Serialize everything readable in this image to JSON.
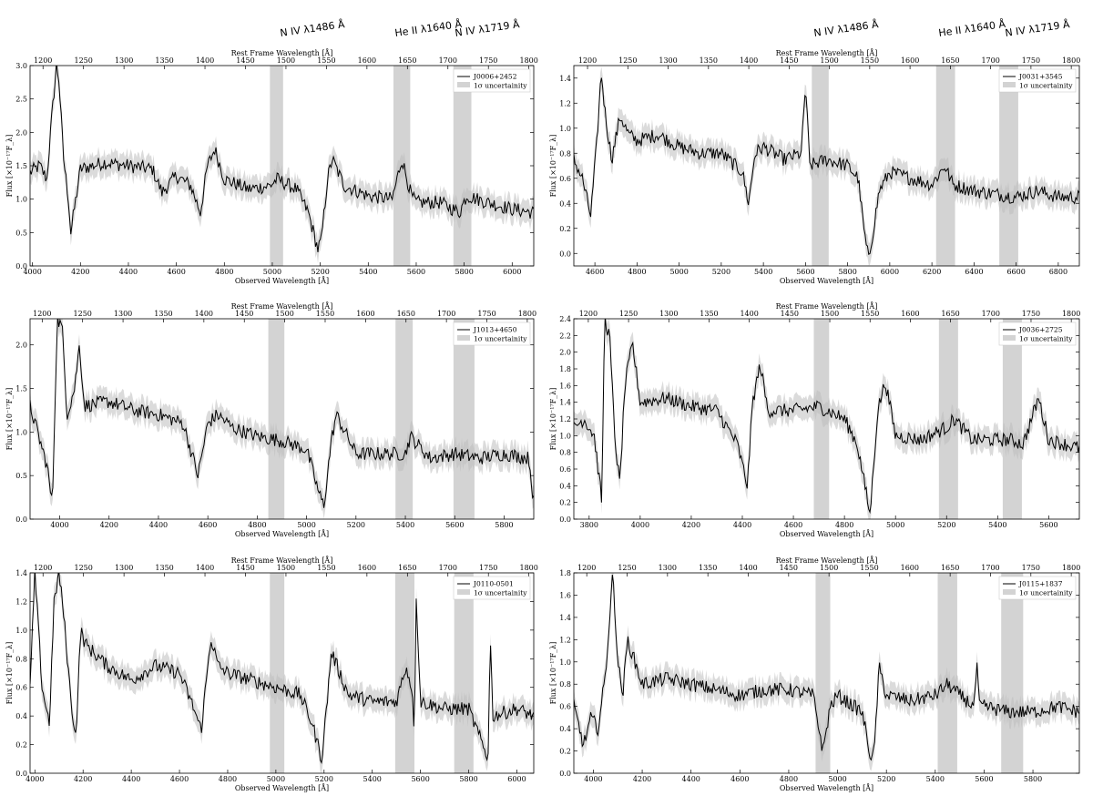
{
  "figure": {
    "line_labels": [
      "N IV λ1486 Å",
      "He II λ1640 Å",
      "N IV λ1719 Å"
    ],
    "colors": {
      "spectrum": "#000000",
      "uncertainty": "#bdbdbd",
      "band": "#d3d3d3"
    }
  },
  "chart_data": [
    {
      "type": "line",
      "name": "J0006+2452",
      "legend": [
        "J0006+2452",
        "1σ uncertainity"
      ],
      "xlabel": "Observed Wavelength [Å]",
      "ylabel": "Flux [×10⁻¹⁷F_λ]",
      "top_xlabel": "Rest Frame Wavelength [Å]",
      "xlim": [
        3990,
        6090
      ],
      "ylim": [
        0.0,
        3.0
      ],
      "xticks": [
        4000,
        4200,
        4400,
        4600,
        4800,
        5000,
        5200,
        5400,
        5600,
        5800,
        6000
      ],
      "yticks": [
        "0.0",
        "0.5",
        "1.0",
        "1.5",
        "2.0",
        "2.5",
        "3.0"
      ],
      "top_ticks": [
        1200,
        1250,
        1300,
        1350,
        1400,
        1450,
        1500,
        1550,
        1600,
        1650,
        1700,
        1750,
        1800
      ],
      "rest_range": [
        1184,
        1806
      ],
      "bands": [
        [
          4990,
          5045
        ],
        [
          5505,
          5575
        ],
        [
          5755,
          5830
        ]
      ],
      "x": [
        3990,
        4030,
        4060,
        4080,
        4100,
        4110,
        4130,
        4150,
        4160,
        4200,
        4300,
        4400,
        4500,
        4540,
        4600,
        4660,
        4700,
        4730,
        4760,
        4800,
        4900,
        4990,
        5020,
        5100,
        5150,
        5190,
        5205,
        5230,
        5250,
        5300,
        5400,
        5500,
        5540,
        5580,
        5600,
        5700,
        5780,
        5810,
        5900,
        6000,
        6090
      ],
      "y": [
        1.4,
        1.5,
        1.3,
        2.2,
        3.0,
        2.8,
        1.6,
        1.0,
        0.5,
        1.45,
        1.55,
        1.5,
        1.45,
        1.1,
        1.35,
        1.2,
        0.8,
        1.5,
        1.75,
        1.3,
        1.15,
        1.2,
        1.3,
        1.15,
        0.8,
        0.25,
        0.4,
        1.3,
        1.6,
        1.2,
        1.05,
        1.0,
        1.6,
        1.05,
        0.95,
        0.95,
        0.8,
        1.05,
        0.95,
        0.85,
        0.8
      ]
    },
    {
      "type": "line",
      "name": "J0031+3545",
      "legend": [
        "J0031+3545",
        "1σ uncertainity"
      ],
      "xlabel": "Observed Wavelength [Å]",
      "ylabel": "Flux [×10⁻¹⁷F_λ]",
      "top_xlabel": "Rest Frame Wavelength [Å]",
      "xlim": [
        4500,
        6900
      ],
      "ylim": [
        -0.1,
        1.5
      ],
      "xticks": [
        4600,
        4800,
        5000,
        5200,
        5400,
        5600,
        5800,
        6000,
        6200,
        6400,
        6600,
        6800
      ],
      "yticks": [
        "0.0",
        "0.2",
        "0.4",
        "0.6",
        "0.8",
        "1.0",
        "1.2",
        "1.4"
      ],
      "top_ticks": [
        1200,
        1250,
        1300,
        1350,
        1400,
        1450,
        1500,
        1550,
        1600,
        1650,
        1700,
        1750,
        1800
      ],
      "rest_range": [
        1183,
        1810
      ],
      "bands": [
        [
          5630,
          5710
        ],
        [
          6220,
          6310
        ],
        [
          6520,
          6610
        ]
      ],
      "x": [
        4500,
        4540,
        4580,
        4610,
        4630,
        4650,
        4680,
        4720,
        4760,
        4800,
        4900,
        5000,
        5100,
        5200,
        5300,
        5330,
        5360,
        5400,
        5500,
        5580,
        5600,
        5620,
        5700,
        5800,
        5850,
        5880,
        5900,
        5950,
        6000,
        6200,
        6260,
        6300,
        6400,
        6600,
        6700,
        6800,
        6900
      ],
      "y": [
        0.75,
        0.6,
        0.3,
        0.9,
        1.45,
        1.1,
        0.75,
        1.1,
        0.95,
        0.9,
        0.95,
        0.85,
        0.8,
        0.8,
        0.65,
        0.4,
        0.8,
        0.85,
        0.75,
        0.8,
        1.35,
        0.7,
        0.75,
        0.7,
        0.6,
        0.15,
        -0.05,
        0.5,
        0.65,
        0.55,
        0.7,
        0.55,
        0.5,
        0.45,
        0.5,
        0.45,
        0.45
      ]
    },
    {
      "type": "line",
      "name": "J1013+4650",
      "legend": [
        "J1013+4650",
        "1σ uncertainity"
      ],
      "xlabel": "Observed Wavelength [Å]",
      "ylabel": "Flux [×10⁻¹⁷F_λ]",
      "top_xlabel": "Rest Frame Wavelength [Å]",
      "xlim": [
        3880,
        5920
      ],
      "ylim": [
        0.0,
        2.3
      ],
      "xticks": [
        4000,
        4200,
        4400,
        4600,
        4800,
        5000,
        5200,
        5400,
        5600,
        5800
      ],
      "yticks": [
        "0.0",
        "0.5",
        "1.0",
        "1.5",
        "2.0"
      ],
      "top_ticks": [
        1200,
        1250,
        1300,
        1350,
        1400,
        1450,
        1500,
        1550,
        1600,
        1650,
        1700,
        1750,
        1800
      ],
      "rest_range": [
        1185,
        1808
      ],
      "bands": [
        [
          4845,
          4910
        ],
        [
          5360,
          5430
        ],
        [
          5595,
          5680
        ]
      ],
      "x": [
        3880,
        3920,
        3950,
        3970,
        3990,
        4010,
        4030,
        4060,
        4080,
        4100,
        4200,
        4300,
        4400,
        4500,
        4560,
        4600,
        4640,
        4700,
        4800,
        4900,
        5000,
        5050,
        5070,
        5100,
        5120,
        5200,
        5300,
        5400,
        5420,
        5500,
        5600,
        5700,
        5800,
        5900,
        5920
      ],
      "y": [
        1.3,
        0.9,
        0.6,
        0.15,
        2.3,
        2.2,
        1.2,
        1.5,
        2.0,
        1.3,
        1.35,
        1.25,
        1.2,
        1.1,
        0.5,
        1.1,
        1.2,
        1.05,
        0.95,
        0.9,
        0.8,
        0.3,
        0.15,
        0.9,
        1.2,
        0.75,
        0.75,
        0.75,
        0.95,
        0.7,
        0.75,
        0.7,
        0.75,
        0.7,
        0.2
      ]
    },
    {
      "type": "line",
      "name": "J0036+2725",
      "legend": [
        "J0036+2725",
        "1σ uncertainity"
      ],
      "xlabel": "Observed Wavelength [Å]",
      "ylabel": "Flux [×10⁻¹⁷F_λ]",
      "top_xlabel": "Rest Frame Wavelength [Å]",
      "xlim": [
        3740,
        5720
      ],
      "ylim": [
        0.0,
        2.4
      ],
      "xticks": [
        3800,
        4000,
        4200,
        4400,
        4600,
        4800,
        5000,
        5200,
        5400,
        5600
      ],
      "yticks": [
        "0.0",
        "0.2",
        "0.4",
        "0.6",
        "0.8",
        "1.0",
        "1.2",
        "1.4",
        "1.6",
        "1.8",
        "2.0",
        "2.2",
        "2.4"
      ],
      "top_ticks": [
        1200,
        1250,
        1300,
        1350,
        1400,
        1450,
        1500,
        1550,
        1600,
        1650,
        1700,
        1750,
        1800
      ],
      "rest_range": [
        1182,
        1810
      ],
      "bands": [
        [
          4680,
          4740
        ],
        [
          5170,
          5245
        ],
        [
          5420,
          5495
        ]
      ],
      "x": [
        3740,
        3780,
        3820,
        3850,
        3860,
        3880,
        3900,
        3920,
        3940,
        3970,
        4000,
        4100,
        4200,
        4300,
        4380,
        4420,
        4440,
        4470,
        4500,
        4600,
        4700,
        4800,
        4850,
        4880,
        4900,
        4930,
        4960,
        5000,
        5100,
        5200,
        5230,
        5300,
        5400,
        5450,
        5500,
        5560,
        5600,
        5720
      ],
      "y": [
        1.1,
        1.2,
        1.0,
        0.2,
        2.4,
        2.2,
        1.0,
        0.4,
        1.6,
        2.1,
        1.4,
        1.45,
        1.35,
        1.3,
        0.9,
        0.4,
        1.4,
        1.85,
        1.3,
        1.3,
        1.35,
        1.2,
        0.9,
        0.4,
        0.05,
        1.3,
        1.65,
        1.0,
        0.95,
        1.1,
        1.2,
        0.95,
        0.95,
        0.95,
        0.9,
        1.45,
        0.95,
        0.85
      ]
    },
    {
      "type": "line",
      "name": "J0110-0501",
      "legend": [
        "J0110-0501",
        "1σ uncertainity"
      ],
      "xlabel": "Observed Wavelength [Å]",
      "ylabel": "Flux [×10⁻¹⁷F_λ]",
      "top_xlabel": "Rest Frame Wavelength [Å]",
      "xlim": [
        3980,
        6070
      ],
      "ylim": [
        0.0,
        1.4
      ],
      "xticks": [
        4000,
        4200,
        4400,
        4600,
        4800,
        5000,
        5200,
        5400,
        5600,
        5800,
        6000
      ],
      "yticks": [
        "0.0",
        "0.2",
        "0.4",
        "0.6",
        "0.8",
        "1.0",
        "1.2",
        "1.4"
      ],
      "top_ticks": [
        1200,
        1250,
        1300,
        1350,
        1400,
        1450,
        1500,
        1550,
        1600,
        1650,
        1700,
        1750,
        1800
      ],
      "rest_range": [
        1184,
        1806
      ],
      "bands": [
        [
          4975,
          5035
        ],
        [
          5495,
          5575
        ],
        [
          5740,
          5820
        ]
      ],
      "x": [
        3980,
        4000,
        4030,
        4060,
        4080,
        4100,
        4120,
        4150,
        4170,
        4190,
        4210,
        4300,
        4400,
        4500,
        4600,
        4660,
        4690,
        4730,
        4760,
        4800,
        4900,
        5000,
        5100,
        5150,
        5190,
        5210,
        5230,
        5300,
        5400,
        5500,
        5540,
        5570,
        5575,
        5580,
        5600,
        5700,
        5800,
        5880,
        5890,
        5900,
        6000,
        6070
      ],
      "y": [
        0.6,
        1.4,
        0.6,
        0.35,
        1.2,
        1.4,
        1.1,
        0.5,
        0.25,
        1.0,
        0.9,
        0.75,
        0.65,
        0.75,
        0.7,
        0.45,
        0.3,
        0.95,
        0.75,
        0.7,
        0.65,
        0.6,
        0.55,
        0.35,
        0.1,
        0.45,
        0.85,
        0.55,
        0.5,
        0.5,
        0.75,
        0.55,
        0.0,
        1.35,
        0.5,
        0.45,
        0.45,
        0.1,
        0.95,
        0.4,
        0.45,
        0.4
      ]
    },
    {
      "type": "line",
      "name": "J0115+1837",
      "legend": [
        "J0115+1837",
        "1σ uncertainity"
      ],
      "xlabel": "Observed Wavelength [Å]",
      "ylabel": "Flux [×10⁻¹⁷F_λ]",
      "top_xlabel": "Rest Frame Wavelength [Å]",
      "xlim": [
        3920,
        5990
      ],
      "ylim": [
        0.0,
        1.8
      ],
      "xticks": [
        4000,
        4200,
        4400,
        4600,
        4800,
        5000,
        5200,
        5400,
        5600,
        5800
      ],
      "yticks": [
        "0.0",
        "0.2",
        "0.4",
        "0.6",
        "0.8",
        "1.0",
        "1.2",
        "1.4",
        "1.6",
        "1.8"
      ],
      "top_ticks": [
        1200,
        1250,
        1300,
        1350,
        1400,
        1450,
        1500,
        1550,
        1600,
        1650,
        1700,
        1750,
        1800
      ],
      "rest_range": [
        1184,
        1810
      ],
      "bands": [
        [
          4910,
          4970
        ],
        [
          5410,
          5490
        ],
        [
          5670,
          5760
        ]
      ],
      "x": [
        3920,
        3960,
        3990,
        4020,
        4050,
        4080,
        4100,
        4120,
        4140,
        4200,
        4300,
        4400,
        4500,
        4600,
        4700,
        4800,
        4900,
        4940,
        4970,
        5000,
        5100,
        5140,
        5150,
        5170,
        5200,
        5300,
        5400,
        5450,
        5500,
        5560,
        5570,
        5580,
        5600,
        5700,
        5800,
        5900,
        5990
      ],
      "y": [
        0.6,
        0.25,
        0.5,
        0.4,
        0.9,
        1.8,
        1.0,
        0.7,
        1.2,
        0.8,
        0.85,
        0.8,
        0.75,
        0.7,
        0.75,
        0.75,
        0.7,
        0.2,
        0.6,
        0.7,
        0.55,
        0.1,
        0.2,
        0.95,
        0.7,
        0.65,
        0.7,
        0.8,
        0.7,
        0.6,
        1.0,
        0.6,
        0.6,
        0.55,
        0.55,
        0.6,
        0.55
      ]
    }
  ]
}
